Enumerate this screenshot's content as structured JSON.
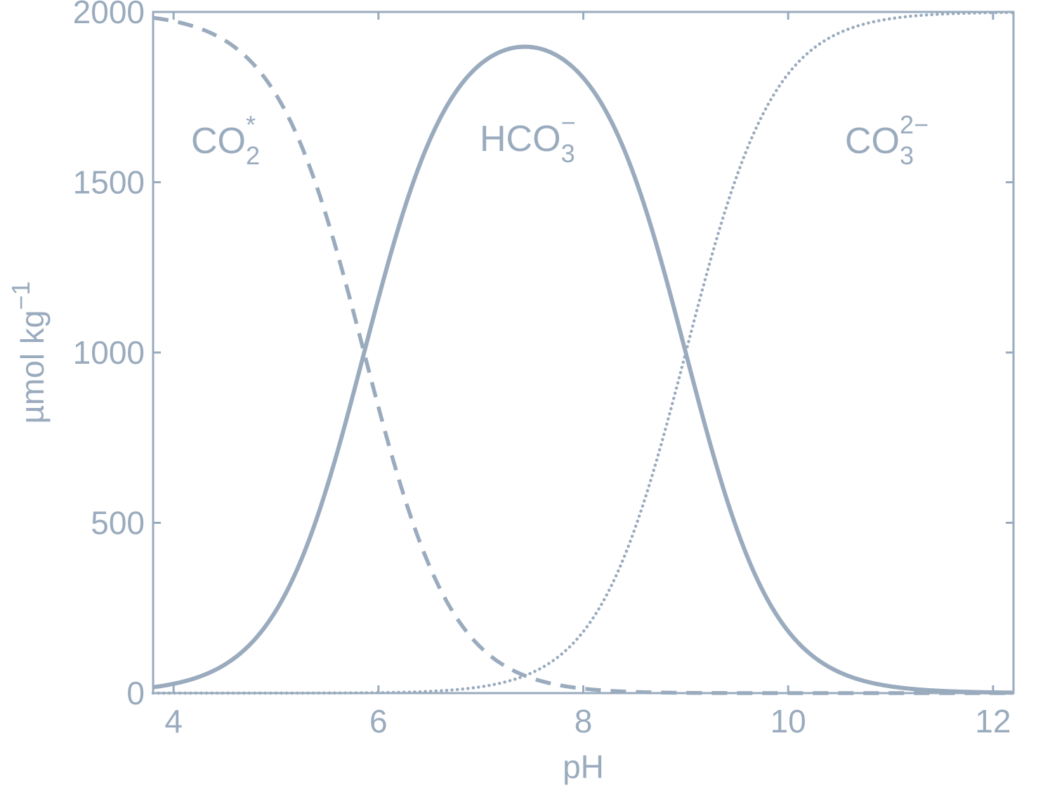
{
  "chart_data": {
    "type": "line",
    "xlabel": "pH",
    "ylabel": {
      "base": "µmol kg",
      "sup": "−1"
    },
    "xlim": [
      3.8,
      12.2
    ],
    "ylim": [
      0,
      2000
    ],
    "xticks": [
      4,
      6,
      8,
      10,
      12
    ],
    "yticks": [
      0,
      500,
      1000,
      1500,
      2000
    ],
    "grid": false,
    "total": 2000,
    "pK1": 5.86,
    "pK2": 9.0,
    "series": [
      {
        "label": {
          "base": "CO",
          "sub": "2",
          "sup": "*"
        },
        "style": "dashed",
        "x": [
          3.8,
          4,
          4.5,
          5,
          5.5,
          5.86,
          6,
          6.5,
          7,
          7.5,
          8,
          8.5,
          9,
          10,
          11,
          12,
          12.2
        ],
        "values": [
          1984,
          1975,
          1923,
          1767,
          1392,
          1000,
          840,
          376,
          133,
          43,
          13,
          4,
          1,
          0,
          0,
          0,
          0
        ]
      },
      {
        "label": {
          "base": "HCO",
          "sub": "3",
          "sup": "−"
        },
        "style": "solid",
        "x": [
          3.8,
          4,
          4.5,
          5,
          5.5,
          5.86,
          6,
          6.5,
          7,
          7.5,
          7.43,
          8,
          8.5,
          9,
          9.5,
          10,
          10.5,
          11,
          11.5,
          12,
          12.2
        ],
        "values": [
          17,
          27,
          84,
          244,
          604,
          998,
          1152,
          1591,
          1802,
          1904,
          1907,
          1845,
          1571,
          999,
          464,
          166,
          54,
          17,
          5,
          2,
          1
        ]
      },
      {
        "label": {
          "base": "CO",
          "sub": "3",
          "sup": "2−"
        },
        "style": "dotted",
        "x": [
          3.8,
          4,
          5,
          6,
          6.5,
          7,
          7.5,
          8,
          8.5,
          9,
          9.5,
          10,
          10.5,
          11,
          11.5,
          12,
          12.2
        ],
        "values": [
          0,
          0,
          0,
          1,
          4,
          13,
          41,
          142,
          426,
          1000,
          1534,
          1834,
          1946,
          1983,
          1995,
          1998,
          1999
        ]
      }
    ]
  }
}
